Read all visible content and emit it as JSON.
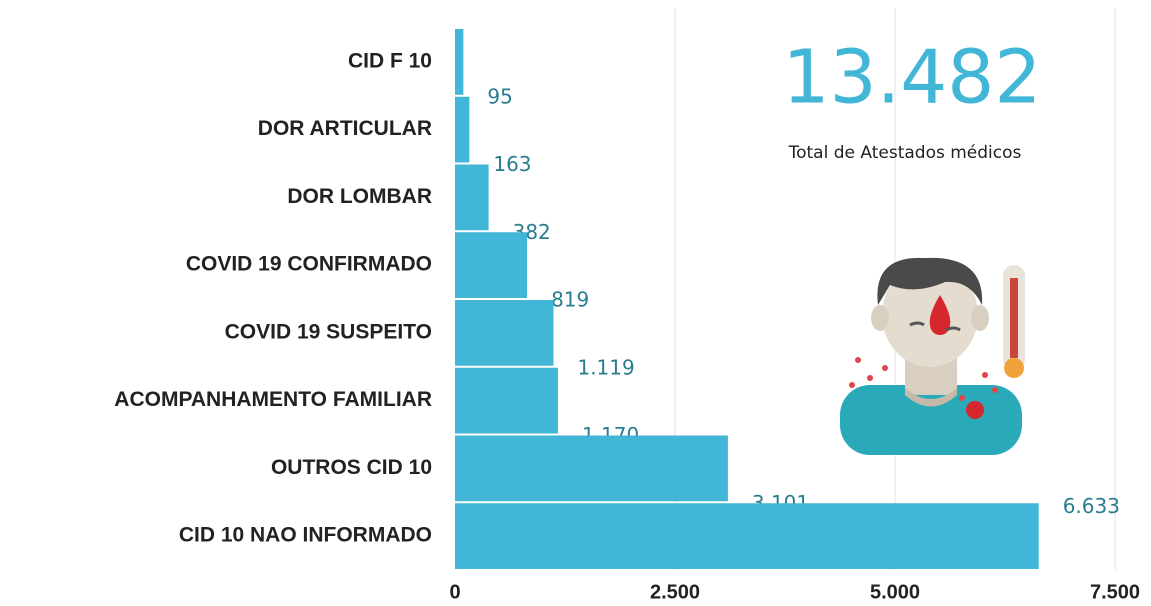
{
  "chart_data": {
    "type": "bar",
    "orientation": "horizontal",
    "categories": [
      "CID F 10",
      "DOR ARTICULAR",
      "DOR LOMBAR",
      "COVID 19 CONFIRMADO",
      "COVID 19 SUSPEITO",
      "ACOMPANHAMENTO  FAMILIAR",
      "OUTROS CID 10",
      "CID 10 NAO INFORMADO"
    ],
    "values": [
      95,
      163,
      382,
      819,
      1119,
      1170,
      3101,
      6633
    ],
    "value_labels": [
      "95",
      "163",
      "382",
      "819",
      "1.119",
      "1.170",
      "3.101",
      "6.633"
    ],
    "color": "#41b6d6",
    "xlim": [
      0,
      7500
    ],
    "xticks": [
      0,
      {
        "value": 2500,
        "label": "2.500"
      },
      {
        "value": 5000,
        "label": "5.000"
      },
      {
        "value": 7500,
        "label": "7.500"
      }
    ],
    "grid": true,
    "annotations": [
      "13.482",
      "Total de Atestados médicos"
    ]
  }
}
